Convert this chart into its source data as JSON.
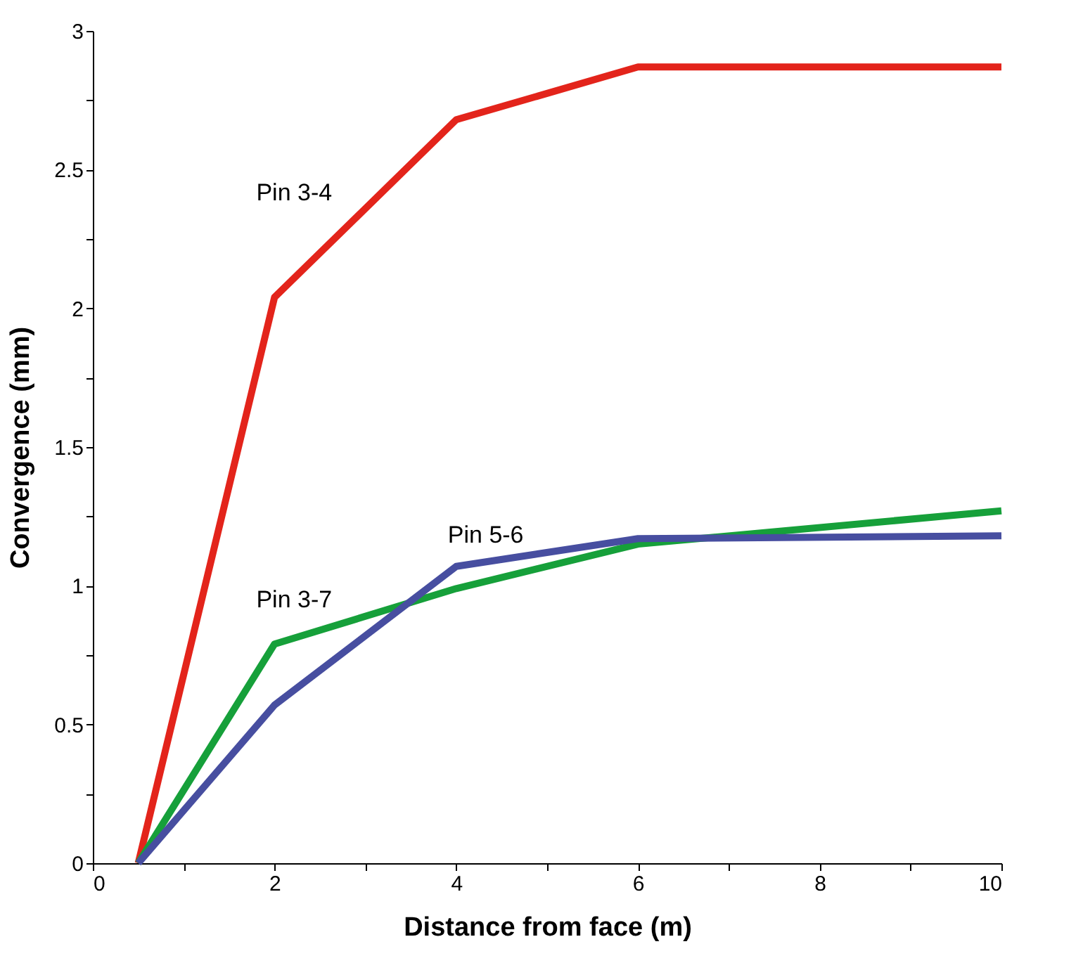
{
  "chart_data": {
    "type": "line",
    "xlabel": "Distance from face (m)",
    "ylabel": "Convergence (mm)",
    "xlim": [
      0,
      10
    ],
    "ylim": [
      0,
      3
    ],
    "xticks": [
      0,
      {
        "value": 1,
        "label": null
      },
      2,
      {
        "value": 3,
        "label": null
      },
      4,
      {
        "value": 5,
        "label": null
      },
      6,
      {
        "value": 7,
        "label": null
      },
      8,
      {
        "value": 9,
        "label": null
      },
      10
    ],
    "yticks": [
      0,
      {
        "value": 0.25,
        "label": null
      },
      0.5,
      {
        "value": 0.75,
        "label": null
      },
      1,
      {
        "value": 1.25,
        "label": null
      },
      1.5,
      {
        "value": 1.75,
        "label": null
      },
      2,
      {
        "value": 2.25,
        "label": null
      },
      2.5,
      {
        "value": 2.75,
        "label": null
      },
      3
    ],
    "grid": false,
    "legend": false,
    "marker": "none",
    "line_style": "solid",
    "series": [
      {
        "name": "Pin 3-4",
        "color": "#e3241b",
        "x": [
          0.5,
          2,
          4,
          6,
          10
        ],
        "values": [
          0,
          2.04,
          2.68,
          2.87,
          2.87
        ]
      },
      {
        "name": "Pin 3-7",
        "color": "#16a03a",
        "x": [
          0.5,
          2,
          4,
          6,
          10
        ],
        "values": [
          0,
          0.79,
          0.99,
          1.15,
          1.27
        ]
      },
      {
        "name": "Pin 5-6",
        "color": "#474ea0",
        "x": [
          0.5,
          2,
          4,
          6,
          10
        ],
        "values": [
          0,
          0.57,
          1.07,
          1.17,
          1.18
        ]
      }
    ]
  }
}
